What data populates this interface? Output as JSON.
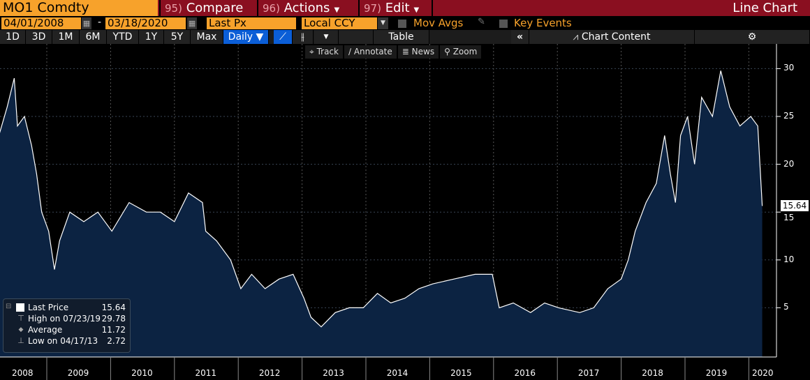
{
  "header": {
    "ticker": "MO1 Comdty",
    "compare_num": "95)",
    "compare": "Compare",
    "actions_num": "96)",
    "actions": "Actions",
    "edit_num": "97)",
    "edit": "Edit",
    "title": "Line Chart"
  },
  "controls": {
    "start_date": "04/01/2008",
    "dash": "-",
    "end_date": "03/18/2020",
    "field": "Last Px",
    "currency": "Local CCY",
    "mov_avgs": "Mov Avgs",
    "key_events": "Key Events"
  },
  "periods": [
    "1D",
    "3D",
    "1M",
    "6M",
    "YTD",
    "1Y",
    "5Y",
    "Max"
  ],
  "frequency": "Daily ▼",
  "toolbar": {
    "table": "Table",
    "collapse": "«",
    "chart_content": "Chart Content"
  },
  "tools": {
    "track": "Track",
    "annotate": "Annotate",
    "news": "News",
    "zoom": "Zoom"
  },
  "legend": {
    "last_label": "Last Price",
    "last_value": "15.64",
    "high_label": "High on 07/23/19",
    "high_value": "29.78",
    "avg_label": "Average",
    "avg_value": "11.72",
    "low_label": "Low on 04/17/13",
    "low_value": "2.72"
  },
  "colors": {
    "bar": "#8a0f20",
    "orange": "#f7a22b",
    "fill": "#0c2342",
    "accent": "#0b5ed7"
  },
  "chart_data": {
    "type": "area",
    "title": "MO1 Comdty Line Chart",
    "ylim": [
      0,
      32
    ],
    "yticks": [
      "5",
      "10",
      "15",
      "20",
      "25",
      "30"
    ],
    "xticks": [
      "2008",
      "2009",
      "2010",
      "2011",
      "2012",
      "2013",
      "2014",
      "2015",
      "2016",
      "2017",
      "2018",
      "2019",
      "2020"
    ],
    "last_label": "15.64",
    "x": [
      2008.25,
      2008.38,
      2008.49,
      2008.54,
      2008.65,
      2008.76,
      2008.84,
      2008.92,
      2009.03,
      2009.12,
      2009.2,
      2009.36,
      2009.58,
      2009.8,
      2010.02,
      2010.29,
      2010.56,
      2010.78,
      2011.0,
      2011.22,
      2011.44,
      2011.49,
      2011.66,
      2011.88,
      2012.04,
      2012.21,
      2012.42,
      2012.64,
      2012.86,
      2013.03,
      2013.14,
      2013.3,
      2013.52,
      2013.74,
      2013.96,
      2014.18,
      2014.39,
      2014.61,
      2014.83,
      2015.05,
      2015.38,
      2015.71,
      2015.98,
      2016.09,
      2016.31,
      2016.58,
      2016.8,
      2017.02,
      2017.35,
      2017.57,
      2017.79,
      2018.0,
      2018.11,
      2018.22,
      2018.39,
      2018.55,
      2018.68,
      2018.77,
      2018.85,
      2018.93,
      2019.04,
      2019.15,
      2019.26,
      2019.43,
      2019.56,
      2019.7,
      2019.86,
      2020.03,
      2020.14,
      2020.21
    ],
    "values": [
      23,
      26,
      29,
      24,
      25,
      22,
      19,
      15,
      13,
      9,
      12,
      15,
      14,
      15,
      13,
      16,
      15,
      15,
      14,
      17,
      16,
      13,
      12,
      10,
      7,
      8.5,
      7,
      8,
      8.5,
      6,
      4,
      3,
      4.5,
      5,
      5,
      6.5,
      5.5,
      6,
      7,
      7.5,
      8,
      8.5,
      8.5,
      5,
      5.5,
      4.5,
      5.5,
      5,
      4.5,
      5,
      7,
      8,
      10,
      13,
      16,
      18,
      23,
      19,
      16,
      23,
      25,
      20,
      27,
      25,
      29.78,
      26,
      24,
      25,
      24,
      15.64
    ]
  }
}
